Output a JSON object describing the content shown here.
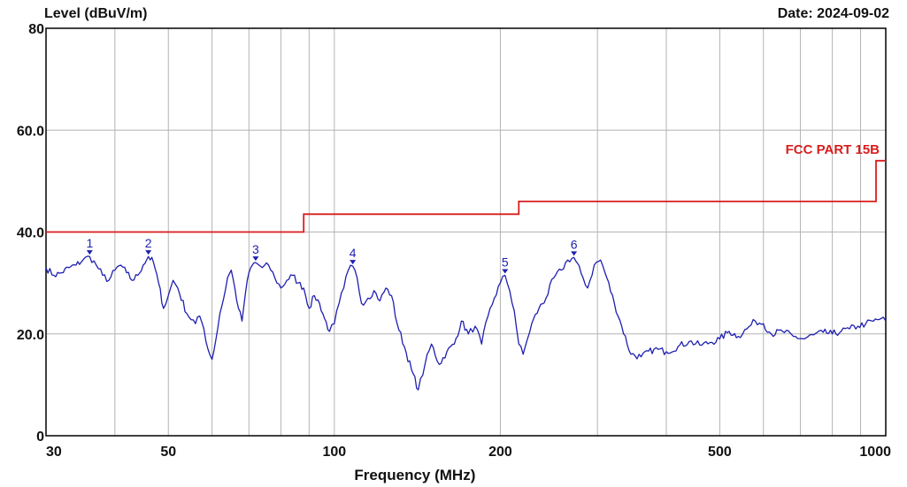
{
  "header": {
    "ylabel": "Level (dBuV/m)",
    "date": "Date: 2024-09-02"
  },
  "chart_data": {
    "type": "line",
    "title": "",
    "xlabel": "Frequency (MHz)",
    "ylabel": "Level (dBuV/m)",
    "x_scale": "log",
    "xlim": [
      30,
      1000
    ],
    "ylim": [
      0,
      80
    ],
    "grid": true,
    "x_ticks": [
      30,
      50,
      100,
      200,
      500,
      1000
    ],
    "x_tick_labels": [
      "30",
      "50",
      "100",
      "200",
      "500",
      "1000"
    ],
    "x_minor_grid": [
      40,
      60,
      70,
      80,
      90,
      300,
      400,
      600,
      700,
      800,
      900
    ],
    "y_ticks": [
      0,
      20,
      40,
      60,
      80
    ],
    "y_tick_labels": [
      "0",
      "20.0",
      "40.0",
      "60.0",
      "80"
    ],
    "limit_line": {
      "name": "FCC PART 15B",
      "color": "#d81d1d",
      "points": [
        [
          30,
          40
        ],
        [
          88,
          40
        ],
        [
          88,
          43.5
        ],
        [
          216,
          43.5
        ],
        [
          216,
          46
        ],
        [
          960,
          46
        ],
        [
          960,
          54
        ],
        [
          1000,
          54
        ]
      ]
    },
    "series": [
      {
        "color": "#1f1fb0",
        "points": [
          [
            30,
            33
          ],
          [
            31,
            31.5
          ],
          [
            32,
            32
          ],
          [
            33,
            33
          ],
          [
            34,
            33.5
          ],
          [
            35,
            34.5
          ],
          [
            36,
            35.2
          ],
          [
            37,
            33.5
          ],
          [
            38,
            31.5
          ],
          [
            39,
            30.5
          ],
          [
            40,
            32.5
          ],
          [
            41,
            33.5
          ],
          [
            42,
            32
          ],
          [
            43,
            30.5
          ],
          [
            44,
            31.5
          ],
          [
            45,
            33.5
          ],
          [
            46,
            35.2
          ],
          [
            47,
            34
          ],
          [
            48,
            30
          ],
          [
            49,
            25
          ],
          [
            50,
            27.5
          ],
          [
            51,
            30.5
          ],
          [
            52,
            29
          ],
          [
            54,
            24
          ],
          [
            56,
            22
          ],
          [
            57,
            23.5
          ],
          [
            58,
            21
          ],
          [
            59,
            17
          ],
          [
            60,
            15
          ],
          [
            61,
            19
          ],
          [
            62,
            24
          ],
          [
            63,
            27
          ],
          [
            64,
            31
          ],
          [
            65,
            32.5
          ],
          [
            66,
            29
          ],
          [
            67,
            25
          ],
          [
            68,
            22.5
          ],
          [
            69,
            28
          ],
          [
            70,
            32
          ],
          [
            71,
            33.5
          ],
          [
            72,
            34
          ],
          [
            74,
            33
          ],
          [
            76,
            33.5
          ],
          [
            78,
            31
          ],
          [
            80,
            29
          ],
          [
            82,
            30.5
          ],
          [
            84,
            31.5
          ],
          [
            86,
            30
          ],
          [
            88,
            29
          ],
          [
            90,
            25
          ],
          [
            92,
            27.5
          ],
          [
            94,
            26
          ],
          [
            96,
            23
          ],
          [
            98,
            20.5
          ],
          [
            100,
            22
          ],
          [
            102,
            26
          ],
          [
            104,
            29
          ],
          [
            106,
            32.5
          ],
          [
            108,
            33.3
          ],
          [
            110,
            31
          ],
          [
            112,
            26
          ],
          [
            115,
            27
          ],
          [
            118,
            28.5
          ],
          [
            121,
            26.5
          ],
          [
            124,
            29
          ],
          [
            127,
            27.5
          ],
          [
            130,
            22
          ],
          [
            134,
            17.5
          ],
          [
            138,
            13
          ],
          [
            142,
            9
          ],
          [
            146,
            14
          ],
          [
            150,
            18
          ],
          [
            155,
            14
          ],
          [
            160,
            16.5
          ],
          [
            165,
            18
          ],
          [
            170,
            22.5
          ],
          [
            175,
            20
          ],
          [
            180,
            21.5
          ],
          [
            185,
            18
          ],
          [
            190,
            23.5
          ],
          [
            195,
            27
          ],
          [
            200,
            30
          ],
          [
            204,
            31.5
          ],
          [
            208,
            28.5
          ],
          [
            212,
            24.5
          ],
          [
            216,
            18
          ],
          [
            220,
            16
          ],
          [
            224,
            19
          ],
          [
            228,
            22
          ],
          [
            235,
            25
          ],
          [
            242,
            27
          ],
          [
            250,
            31
          ],
          [
            258,
            32.5
          ],
          [
            265,
            34.5
          ],
          [
            272,
            35
          ],
          [
            280,
            32
          ],
          [
            288,
            29
          ],
          [
            296,
            33.5
          ],
          [
            304,
            34.5
          ],
          [
            312,
            31
          ],
          [
            322,
            26
          ],
          [
            332,
            21.5
          ],
          [
            345,
            16
          ],
          [
            360,
            15.5
          ],
          [
            380,
            17
          ],
          [
            400,
            16.5
          ],
          [
            420,
            17.5
          ],
          [
            440,
            18.5
          ],
          [
            460,
            17.8
          ],
          [
            480,
            18.3
          ],
          [
            500,
            19
          ],
          [
            520,
            20.5
          ],
          [
            540,
            19.5
          ],
          [
            560,
            21
          ],
          [
            580,
            22.5
          ],
          [
            600,
            22
          ],
          [
            620,
            20
          ],
          [
            650,
            20.5
          ],
          [
            680,
            19.5
          ],
          [
            710,
            19
          ],
          [
            740,
            19.8
          ],
          [
            770,
            20.3
          ],
          [
            800,
            20
          ],
          [
            830,
            20.5
          ],
          [
            860,
            21
          ],
          [
            890,
            21.5
          ],
          [
            920,
            22
          ],
          [
            950,
            22.5
          ],
          [
            980,
            23
          ],
          [
            1000,
            22.5
          ]
        ]
      }
    ],
    "markers": [
      {
        "label": "1",
        "x": 36,
        "y": 35.2
      },
      {
        "label": "2",
        "x": 46,
        "y": 35.2
      },
      {
        "label": "3",
        "x": 72,
        "y": 34
      },
      {
        "label": "4",
        "x": 108,
        "y": 33.3
      },
      {
        "label": "5",
        "x": 204,
        "y": 31.5
      },
      {
        "label": "6",
        "x": 272,
        "y": 35
      }
    ]
  }
}
